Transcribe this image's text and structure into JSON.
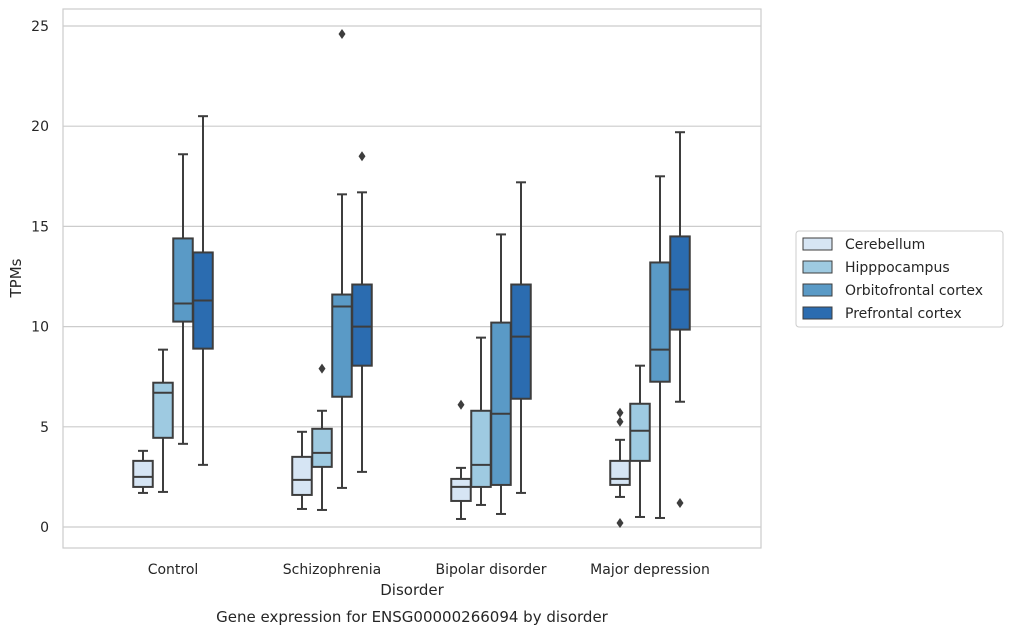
{
  "caption": "Gene expression for ENSG00000266094 by disorder",
  "chart_data": {
    "type": "box",
    "title": "",
    "xlabel": "Disorder",
    "ylabel": "TPMs",
    "ylim": [
      -1,
      25.9
    ],
    "yticks": [
      "0",
      "5",
      "10",
      "15",
      "20",
      "25"
    ],
    "grid": "horizontal",
    "legend_position": "right",
    "categories": [
      "Control",
      "Schizophrenia",
      "Bipolar disorder",
      "Major depression"
    ],
    "series": [
      {
        "name": "Cerebellum",
        "color": "#d6e5f4",
        "boxes": [
          {
            "whislo": 1.7,
            "q1": 2.0,
            "med": 2.5,
            "q3": 3.3,
            "whishi": 3.8,
            "fliers": []
          },
          {
            "whislo": 0.9,
            "q1": 1.6,
            "med": 2.35,
            "q3": 3.5,
            "whishi": 4.75,
            "fliers": []
          },
          {
            "whislo": 0.4,
            "q1": 1.3,
            "med": 2.0,
            "q3": 2.4,
            "whishi": 2.95,
            "fliers": [
              6.1
            ]
          },
          {
            "whislo": 1.5,
            "q1": 2.1,
            "med": 2.4,
            "q3": 3.3,
            "whishi": 4.35,
            "fliers": [
              5.7,
              5.25,
              0.2
            ]
          }
        ]
      },
      {
        "name": "Hipppocampus",
        "color": "#9ecae1",
        "boxes": [
          {
            "whislo": 1.75,
            "q1": 4.45,
            "med": 6.7,
            "q3": 7.2,
            "whishi": 8.85,
            "fliers": []
          },
          {
            "whislo": 0.85,
            "q1": 3.0,
            "med": 3.7,
            "q3": 4.9,
            "whishi": 5.8,
            "fliers": [
              7.9
            ]
          },
          {
            "whislo": 1.1,
            "q1": 2.0,
            "med": 3.1,
            "q3": 5.8,
            "whishi": 9.45,
            "fliers": []
          },
          {
            "whislo": 0.5,
            "q1": 3.3,
            "med": 4.8,
            "q3": 6.15,
            "whishi": 8.05,
            "fliers": []
          }
        ]
      },
      {
        "name": "Orbitofrontal cortex",
        "color": "#5a9ac6",
        "boxes": [
          {
            "whislo": 4.15,
            "q1": 10.25,
            "med": 11.15,
            "q3": 14.4,
            "whishi": 18.6,
            "fliers": []
          },
          {
            "whislo": 1.95,
            "q1": 6.5,
            "med": 11.0,
            "q3": 11.6,
            "whishi": 16.6,
            "fliers": [
              24.6
            ]
          },
          {
            "whislo": 0.65,
            "q1": 2.1,
            "med": 5.65,
            "q3": 10.2,
            "whishi": 14.6,
            "fliers": []
          },
          {
            "whislo": 0.45,
            "q1": 7.25,
            "med": 8.85,
            "q3": 13.2,
            "whishi": 17.5,
            "fliers": []
          }
        ]
      },
      {
        "name": "Prefrontal cortex",
        "color": "#2b6cb0",
        "boxes": [
          {
            "whislo": 3.1,
            "q1": 8.9,
            "med": 11.3,
            "q3": 13.7,
            "whishi": 20.5,
            "fliers": []
          },
          {
            "whislo": 2.75,
            "q1": 8.05,
            "med": 10.0,
            "q3": 12.1,
            "whishi": 16.7,
            "fliers": [
              18.5
            ]
          },
          {
            "whislo": 1.7,
            "q1": 6.4,
            "med": 9.5,
            "q3": 12.1,
            "whishi": 17.2,
            "fliers": []
          },
          {
            "whislo": 6.25,
            "q1": 9.85,
            "med": 11.85,
            "q3": 14.5,
            "whishi": 19.7,
            "fliers": [
              1.2
            ]
          }
        ]
      }
    ]
  }
}
